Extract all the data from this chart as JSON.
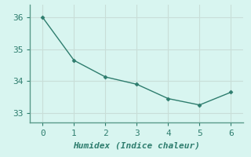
{
  "x": [
    0,
    1,
    2,
    3,
    4,
    5,
    6
  ],
  "y": [
    36.0,
    34.65,
    34.13,
    33.9,
    33.45,
    33.25,
    33.65
  ],
  "line_color": "#2e7d6e",
  "marker": "D",
  "marker_size": 2.5,
  "background_color": "#d8f5f0",
  "grid_color": "#c8ded8",
  "spine_color": "#5a9a8a",
  "xlabel": "Humidex (Indice chaleur)",
  "xlabel_fontsize": 8,
  "tick_fontsize": 8,
  "tick_color": "#2e7d6e",
  "xlim": [
    -0.4,
    6.4
  ],
  "ylim": [
    32.7,
    36.4
  ],
  "yticks": [
    33,
    34,
    35,
    36
  ],
  "xticks": [
    0,
    1,
    2,
    3,
    4,
    5,
    6
  ]
}
